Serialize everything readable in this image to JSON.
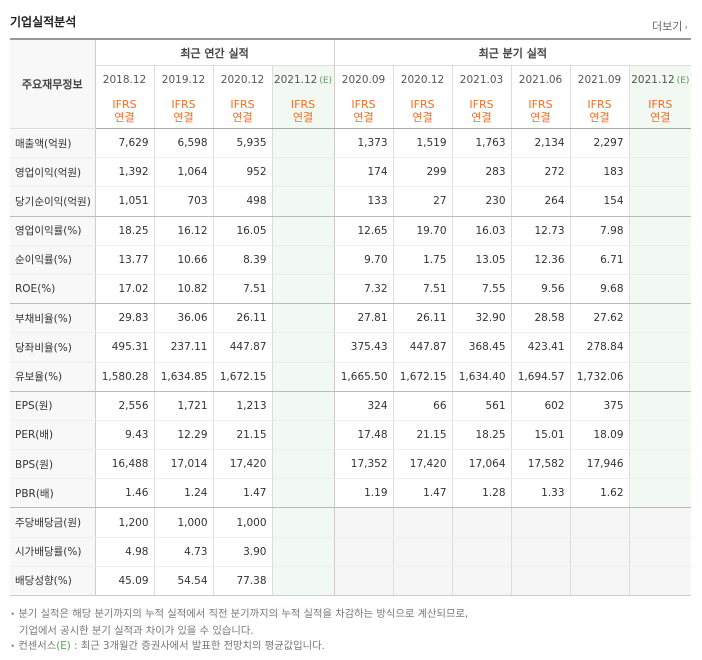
{
  "header": {
    "title": "기업실적분석",
    "more": "더보기"
  },
  "table": {
    "row_header_label": "주요재무정보",
    "group_annual": "최근 연간 실적",
    "group_quarter": "최근 분기 실적",
    "periods": [
      "2018.12",
      "2019.12",
      "2020.12",
      "2021.12",
      "2020.09",
      "2020.12",
      "2021.03",
      "2021.06",
      "2021.09",
      "2021.12"
    ],
    "estimate_mark": "(E)",
    "ifrs_line1": "IFRS",
    "ifrs_line2": "연결",
    "rows": [
      {
        "label": "매출액(억원)",
        "values": [
          "7,629",
          "6,598",
          "5,935",
          "",
          "1,373",
          "1,519",
          "1,763",
          "2,134",
          "2,297",
          ""
        ]
      },
      {
        "label": "영업이익(억원)",
        "values": [
          "1,392",
          "1,064",
          "952",
          "",
          "174",
          "299",
          "283",
          "272",
          "183",
          ""
        ]
      },
      {
        "label": "당기순이익(억원)",
        "values": [
          "1,051",
          "703",
          "498",
          "",
          "133",
          "27",
          "230",
          "264",
          "154",
          ""
        ]
      },
      {
        "label": "영업이익률(%)",
        "values": [
          "18.25",
          "16.12",
          "16.05",
          "",
          "12.65",
          "19.70",
          "16.03",
          "12.73",
          "7.98",
          ""
        ]
      },
      {
        "label": "순이익률(%)",
        "values": [
          "13.77",
          "10.66",
          "8.39",
          "",
          "9.70",
          "1.75",
          "13.05",
          "12.36",
          "6.71",
          ""
        ]
      },
      {
        "label": "ROE(%)",
        "values": [
          "17.02",
          "10.82",
          "7.51",
          "",
          "7.32",
          "7.51",
          "7.55",
          "9.56",
          "9.68",
          ""
        ]
      },
      {
        "label": "부채비율(%)",
        "values": [
          "29.83",
          "36.06",
          "26.11",
          "",
          "27.81",
          "26.11",
          "32.90",
          "28.58",
          "27.62",
          ""
        ]
      },
      {
        "label": "당좌비율(%)",
        "values": [
          "495.31",
          "237.11",
          "447.87",
          "",
          "375.43",
          "447.87",
          "368.45",
          "423.41",
          "278.84",
          ""
        ]
      },
      {
        "label": "유보율(%)",
        "values": [
          "1,580.28",
          "1,634.85",
          "1,672.15",
          "",
          "1,665.50",
          "1,672.15",
          "1,634.40",
          "1,694.57",
          "1,732.06",
          ""
        ]
      },
      {
        "label": "EPS(원)",
        "values": [
          "2,556",
          "1,721",
          "1,213",
          "",
          "324",
          "66",
          "561",
          "602",
          "375",
          ""
        ]
      },
      {
        "label": "PER(배)",
        "values": [
          "9.43",
          "12.29",
          "21.15",
          "",
          "17.48",
          "21.15",
          "18.25",
          "15.01",
          "18.09",
          ""
        ]
      },
      {
        "label": "BPS(원)",
        "values": [
          "16,488",
          "17,014",
          "17,420",
          "",
          "17,352",
          "17,420",
          "17,064",
          "17,582",
          "17,946",
          ""
        ]
      },
      {
        "label": "PBR(배)",
        "values": [
          "1.46",
          "1.24",
          "1.47",
          "",
          "1.19",
          "1.47",
          "1.28",
          "1.33",
          "1.62",
          ""
        ]
      },
      {
        "label": "주당배당금(원)",
        "values": [
          "1,200",
          "1,000",
          "1,000",
          "",
          "",
          "",
          "",
          "",
          "",
          ""
        ]
      },
      {
        "label": "시가배당률(%)",
        "values": [
          "4.98",
          "4.73",
          "3.90",
          "",
          "",
          "",
          "",
          "",
          "",
          ""
        ]
      },
      {
        "label": "배당성향(%)",
        "values": [
          "45.09",
          "54.54",
          "77.38",
          "",
          "",
          "",
          "",
          "",
          "",
          ""
        ]
      }
    ]
  },
  "notes": {
    "line1": "분기 실적은 해당 분기까지의 누적 실적에서 직전 분기까지의 누적 실적을 차감하는 방식으로 계산되므로,",
    "line2": "기업에서 공시한 분기 실적과 차이가 있을 수 있습니다.",
    "line3a": "컨센서스",
    "line3b": "(E)",
    "line3c": " : 최근 3개월간 증권사에서 발표한 전망치의 평균값입니다."
  }
}
